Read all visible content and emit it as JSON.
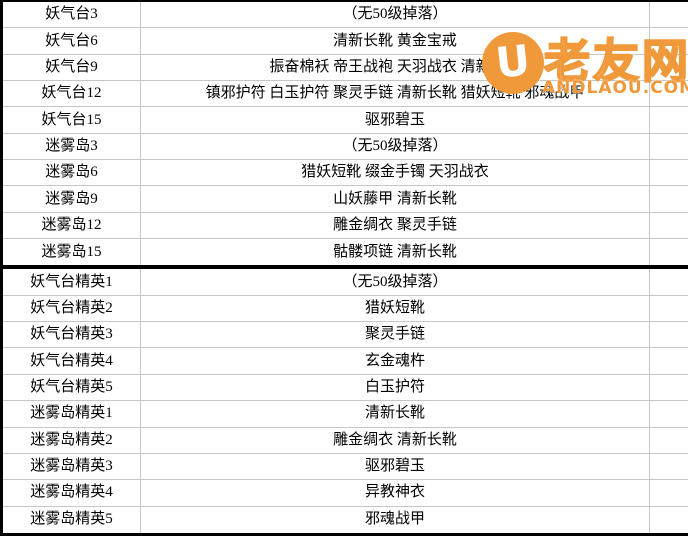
{
  "watermark": {
    "logo_letter": "U",
    "site_name": "老友网",
    "url": "ANDLAOU.COM",
    "accent_color": "#f0993b"
  },
  "colors": {
    "gridline": "#c6c6c6",
    "section_border": "#000000",
    "background": "#ffffff",
    "text": "#000000"
  },
  "table": {
    "sections": [
      {
        "name": "normal-stages",
        "rows": [
          {
            "label": "妖气台3",
            "drops": "（无50级掉落）"
          },
          {
            "label": "妖气台6",
            "drops": "清新长靴 黄金宝戒"
          },
          {
            "label": "妖气台9",
            "drops": "振奋棉袄 帝王战袍 天羽战衣 清新长靴"
          },
          {
            "label": "妖气台12",
            "drops": "镇邪护符 白玉护符 聚灵手链 清新长靴 猎妖短靴 邪魂战甲"
          },
          {
            "label": "妖气台15",
            "drops": "驱邪碧玉"
          },
          {
            "label": "迷雾岛3",
            "drops": "（无50级掉落）"
          },
          {
            "label": "迷雾岛6",
            "drops": "猎妖短靴 缀金手镯 天羽战衣"
          },
          {
            "label": "迷雾岛9",
            "drops": "山妖藤甲 清新长靴"
          },
          {
            "label": "迷雾岛12",
            "drops": "雕金绸衣 聚灵手链"
          },
          {
            "label": "迷雾岛15",
            "drops": "骷髅项链 清新长靴"
          }
        ]
      },
      {
        "name": "elite-stages",
        "rows": [
          {
            "label": "妖气台精英1",
            "drops": "（无50级掉落）"
          },
          {
            "label": "妖气台精英2",
            "drops": "猎妖短靴"
          },
          {
            "label": "妖气台精英3",
            "drops": "聚灵手链"
          },
          {
            "label": "妖气台精英4",
            "drops": "玄金魂杵"
          },
          {
            "label": "妖气台精英5",
            "drops": "白玉护符"
          },
          {
            "label": "迷雾岛精英1",
            "drops": "清新长靴"
          },
          {
            "label": "迷雾岛精英2",
            "drops": "雕金绸衣 清新长靴"
          },
          {
            "label": "迷雾岛精英3",
            "drops": "驱邪碧玉"
          },
          {
            "label": "迷雾岛精英4",
            "drops": "异教神衣"
          },
          {
            "label": "迷雾岛精英5",
            "drops": "邪魂战甲"
          }
        ]
      }
    ]
  }
}
